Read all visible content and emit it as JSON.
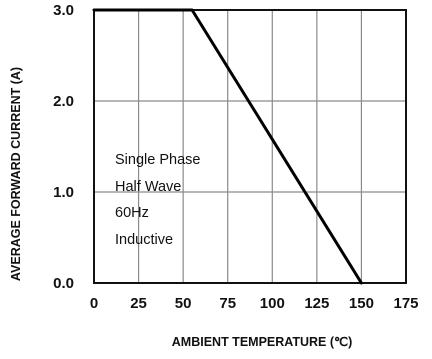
{
  "chart_data": {
    "type": "line",
    "xlabel": "AMBIENT TEMPERATURE (℃)",
    "ylabel": "AVERAGE FORWARD CURRENT (A)",
    "xlim": [
      0,
      175
    ],
    "ylim": [
      0,
      3
    ],
    "x_ticks": [
      "0",
      "25",
      "50",
      "75",
      "100",
      "125",
      "150",
      "175"
    ],
    "y_ticks": [
      "0.0",
      "1.0",
      "2.0",
      "3.0"
    ],
    "grid": true,
    "series": [
      {
        "x": [
          0,
          55,
          150
        ],
        "y": [
          3.0,
          3.0,
          0.0
        ]
      }
    ],
    "annotation": [
      "Single Phase",
      "Half Wave",
      "60Hz",
      "Inductive"
    ]
  }
}
